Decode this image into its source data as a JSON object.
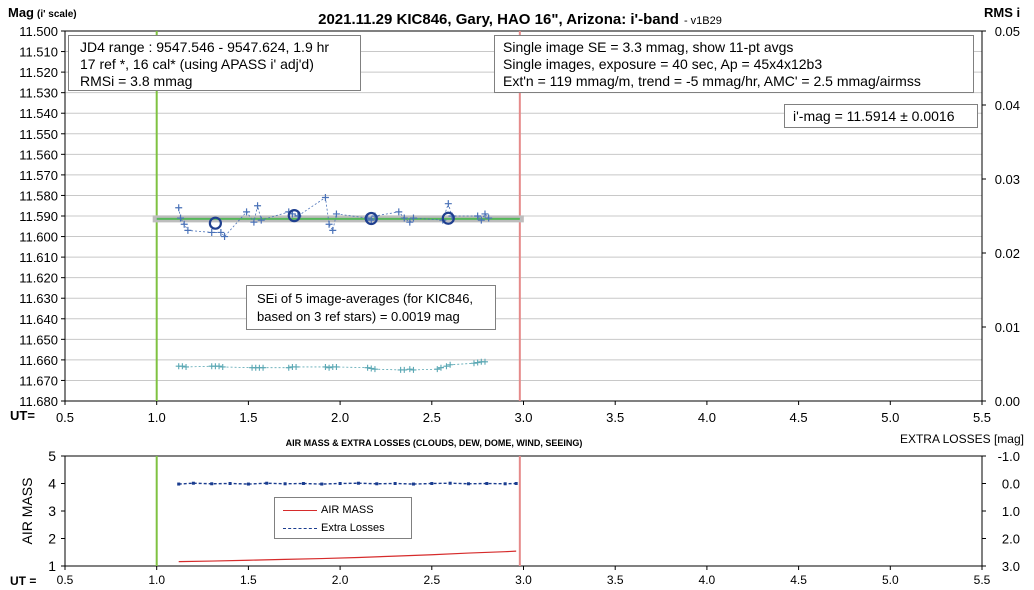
{
  "chart_data": [
    {
      "type": "scatter",
      "title": "2021.11.29 KIC846, Gary, HAO 16\", Arizona: i'-band",
      "version_tag": "- v1B29",
      "ylabel_main": "Mag",
      "ylabel_sub": "(i' scale)",
      "y2label": "RMS i",
      "xaxis_prefix": "UT=",
      "xlim": [
        0.5,
        5.5
      ],
      "ylim": [
        11.5,
        11.68
      ],
      "y_inverted": true,
      "y2lim": [
        0,
        0.05
      ],
      "xticks": [
        "0.5",
        "1.0",
        "1.5",
        "2.0",
        "2.5",
        "3.0",
        "3.5",
        "4.0",
        "4.5",
        "5.0",
        "5.5"
      ],
      "yticks": [
        "11.500",
        "11.510",
        "11.520",
        "11.530",
        "11.540",
        "11.550",
        "11.560",
        "11.570",
        "11.580",
        "11.590",
        "11.600",
        "11.610",
        "11.620",
        "11.630",
        "11.640",
        "11.650",
        "11.660",
        "11.670",
        "11.680"
      ],
      "y2ticks": [
        "0.05",
        "0.04",
        "0.03",
        "0.02",
        "0.01",
        "0.00"
      ],
      "grid": true,
      "colors": {
        "mag": "#4a72b8",
        "avg": "#1f3f8f",
        "rms": "#5ba8b4",
        "fit": "#55b85a",
        "start": "#7fc241",
        "end": "#e58a8a"
      },
      "vlines": {
        "start": 1.0,
        "end": 2.98
      },
      "trend_line": {
        "x": [
          1.0,
          2.98
        ],
        "y": [
          11.5914,
          11.5914
        ]
      },
      "series": [
        {
          "kind": "single_images",
          "x": [
            1.12,
            1.13,
            1.15,
            1.17,
            1.3,
            1.35,
            1.37,
            1.49,
            1.53,
            1.55,
            1.57,
            1.72,
            1.74,
            1.77,
            1.92,
            1.94,
            1.96,
            1.98,
            2.15,
            2.17,
            2.19,
            2.32,
            2.35,
            2.38,
            2.4,
            2.56,
            2.59,
            2.61,
            2.75,
            2.77,
            2.79,
            2.81
          ],
          "y": [
            11.586,
            11.591,
            11.594,
            11.597,
            11.598,
            11.598,
            11.6,
            11.588,
            11.593,
            11.585,
            11.592,
            11.588,
            11.589,
            11.59,
            11.581,
            11.594,
            11.597,
            11.589,
            11.591,
            11.592,
            11.59,
            11.588,
            11.591,
            11.593,
            11.591,
            11.592,
            11.584,
            11.59,
            11.59,
            11.592,
            11.589,
            11.591
          ]
        },
        {
          "kind": "averages",
          "x": [
            1.32,
            1.75,
            2.17,
            2.59
          ],
          "y": [
            11.5935,
            11.5898,
            11.5912,
            11.5911
          ]
        },
        {
          "kind": "rms",
          "axis": "y2",
          "x": [
            1.12,
            1.14,
            1.16,
            1.3,
            1.32,
            1.34,
            1.36,
            1.52,
            1.54,
            1.56,
            1.58,
            1.72,
            1.74,
            1.76,
            1.92,
            1.94,
            1.96,
            1.98,
            2.15,
            2.17,
            2.19,
            2.33,
            2.35,
            2.38,
            2.4,
            2.53,
            2.55,
            2.58,
            2.6,
            2.73,
            2.75,
            2.77,
            2.79
          ],
          "y": [
            0.0047,
            0.0047,
            0.0046,
            0.0047,
            0.0047,
            0.0047,
            0.0046,
            0.0045,
            0.0045,
            0.0045,
            0.0045,
            0.0045,
            0.0046,
            0.0046,
            0.0046,
            0.0045,
            0.0046,
            0.0046,
            0.0045,
            0.0044,
            0.0043,
            0.0042,
            0.0042,
            0.0043,
            0.0042,
            0.0043,
            0.0045,
            0.0047,
            0.0049,
            0.0051,
            0.0052,
            0.0053,
            0.0053
          ]
        }
      ],
      "annotations": {
        "left_box": [
          "JD4 range : 9547.546 - 9547.624, 1.9  hr",
          "17 ref *, 16 cal* (using APASS i' adj'd)",
          "RMSi = 3.8 mmag"
        ],
        "right_box": [
          "Single image SE = 3.3 mmag, show 11-pt avgs",
          "Single images, exposure = 40 sec, Ap = 45x4x12b3",
          "Ext'n = 119 mmag/m, trend = -5 mmag/hr, AMC' = 2.5 mmag/airmss"
        ],
        "mag_box": "i'-mag = 11.5914 ± 0.0016",
        "se_box": [
          "SEi of 5 image-averages (for KIC846,",
          "based on 3 ref stars) = 0.0019 mag"
        ]
      }
    },
    {
      "type": "line",
      "title": "AIR MASS & EXTRA LOSSES (CLOUDS, DEW, DOME, WIND, SEEING)",
      "ylabel": "AIR MASS",
      "y2label": "EXTRA LOSSES [mag]",
      "xaxis_prefix": "UT =",
      "xlim": [
        0.5,
        5.5
      ],
      "ylim": [
        1,
        5
      ],
      "y2lim": [
        -1.0,
        3.0
      ],
      "y2_inverted": true,
      "xticks": [
        "0.5",
        "1.0",
        "1.5",
        "2.0",
        "2.5",
        "3.0",
        "3.5",
        "4.0",
        "4.5",
        "5.0",
        "5.5"
      ],
      "yticks": [
        "5",
        "4",
        "3",
        "2",
        "1"
      ],
      "y2ticks": [
        "-1.0",
        "0.0",
        "1.0",
        "2.0",
        "3.0"
      ],
      "grid": false,
      "colors": {
        "airmass": "#d62b2b",
        "losses": "#1a3c8f",
        "start": "#7fc241",
        "end": "#e58a8a"
      },
      "vlines": {
        "start": 1.0,
        "end": 2.98
      },
      "series": [
        {
          "name": "AIR MASS",
          "x": [
            1.12,
            1.3,
            1.5,
            1.7,
            1.9,
            2.1,
            2.3,
            2.5,
            2.7,
            2.9,
            2.96
          ],
          "y": [
            1.16,
            1.18,
            1.21,
            1.24,
            1.27,
            1.31,
            1.36,
            1.41,
            1.47,
            1.52,
            1.54
          ]
        },
        {
          "name": "Extra Losses",
          "axis": "y2",
          "x": [
            1.12,
            1.2,
            1.3,
            1.4,
            1.5,
            1.6,
            1.7,
            1.8,
            1.9,
            2.0,
            2.1,
            2.2,
            2.3,
            2.4,
            2.5,
            2.6,
            2.7,
            2.8,
            2.9,
            2.96
          ],
          "y": [
            0.02,
            -0.01,
            0.01,
            0.0,
            0.02,
            -0.01,
            0.01,
            0.0,
            0.02,
            0.0,
            -0.01,
            0.01,
            0.0,
            0.02,
            0.0,
            -0.01,
            0.01,
            0.0,
            0.01,
            0.0
          ]
        }
      ]
    }
  ]
}
